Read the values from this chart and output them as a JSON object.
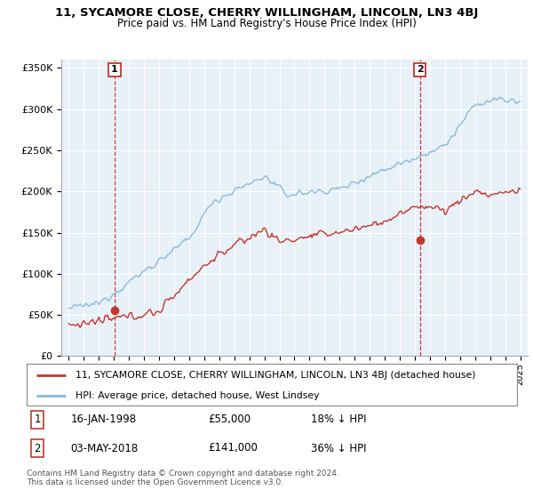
{
  "title": "11, SYCAMORE CLOSE, CHERRY WILLINGHAM, LINCOLN, LN3 4BJ",
  "subtitle": "Price paid vs. HM Land Registry's House Price Index (HPI)",
  "ylim": [
    0,
    360000
  ],
  "yticks": [
    0,
    50000,
    100000,
    150000,
    200000,
    250000,
    300000,
    350000
  ],
  "xlim_start": 1994.5,
  "xlim_end": 2025.5,
  "transaction1_date": 1998.04,
  "transaction1_price": 55000,
  "transaction1_label": "1",
  "transaction2_date": 2018.34,
  "transaction2_price": 141000,
  "transaction2_label": "2",
  "hpi_line_color": "#7eb8d4",
  "price_line_color": "#c0392b",
  "vline_color": "#c0392b",
  "point_color": "#c0392b",
  "legend_house_label": "11, SYCAMORE CLOSE, CHERRY WILLINGHAM, LINCOLN, LN3 4BJ (detached house)",
  "legend_hpi_label": "HPI: Average price, detached house, West Lindsey",
  "note1_label": "1",
  "note1_date": "16-JAN-1998",
  "note1_price": "£55,000",
  "note1_pct": "18% ↓ HPI",
  "note2_label": "2",
  "note2_date": "03-MAY-2018",
  "note2_price": "£141,000",
  "note2_pct": "36% ↓ HPI",
  "footer": "Contains HM Land Registry data © Crown copyright and database right 2024.\nThis data is licensed under the Open Government Licence v3.0.",
  "background_color": "#ffffff",
  "plot_bg_color": "#e8f0f8",
  "grid_color": "#ffffff"
}
